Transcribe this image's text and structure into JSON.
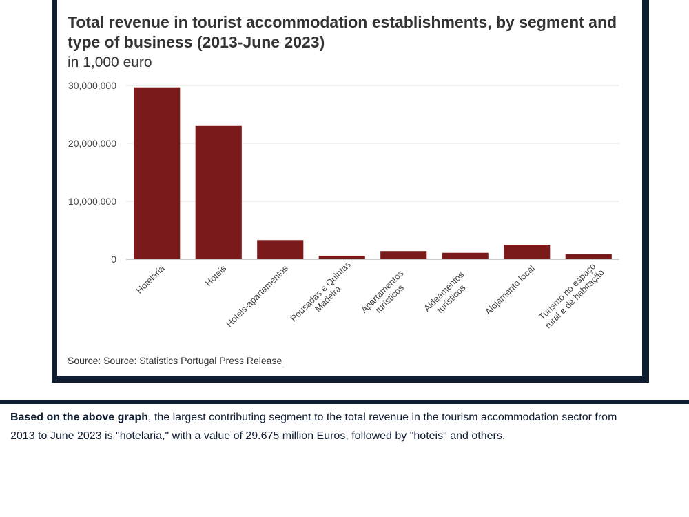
{
  "chart_data": {
    "type": "bar",
    "title": "Total revenue in tourist accommodation establishments, by segment and type of business (2013-June 2023)",
    "subtitle": "in 1,000 euro",
    "categories": [
      [
        "Hotelaria"
      ],
      [
        "Hoteis"
      ],
      [
        "Hoteis-apartamentos"
      ],
      [
        "Pousadas e Quintas",
        "Madeira"
      ],
      [
        "Apartamentos",
        "turísticos"
      ],
      [
        "Aldeamentos",
        "turísticos"
      ],
      [
        "Alojamento local"
      ],
      [
        "Turismo no espaço",
        "rural e de habitação"
      ]
    ],
    "values": [
      29675000,
      23000000,
      3300000,
      600000,
      1400000,
      1100000,
      2500000,
      900000
    ],
    "ylim": [
      0,
      30000000
    ],
    "yticks": [
      0,
      10000000,
      20000000,
      30000000
    ],
    "ytick_labels": [
      "0",
      "10,000,000",
      "20,000,000",
      "30,000,000"
    ],
    "xlabel": "",
    "ylabel": "",
    "bar_color": "#7b1a1a",
    "grid": true
  },
  "source": {
    "prefix": "Source:",
    "link_text": "Source: Statistics Portugal Press Release"
  },
  "caption": {
    "bold_lead": "Based on the above graph",
    "line1_rest": ", the largest contributing segment to the total revenue in the tourism accommodation sector from",
    "line2": "2013 to June 2023 is \"hotelaria,\" with a value of 29.675 million Euros, followed by \"hoteis\" and others."
  }
}
